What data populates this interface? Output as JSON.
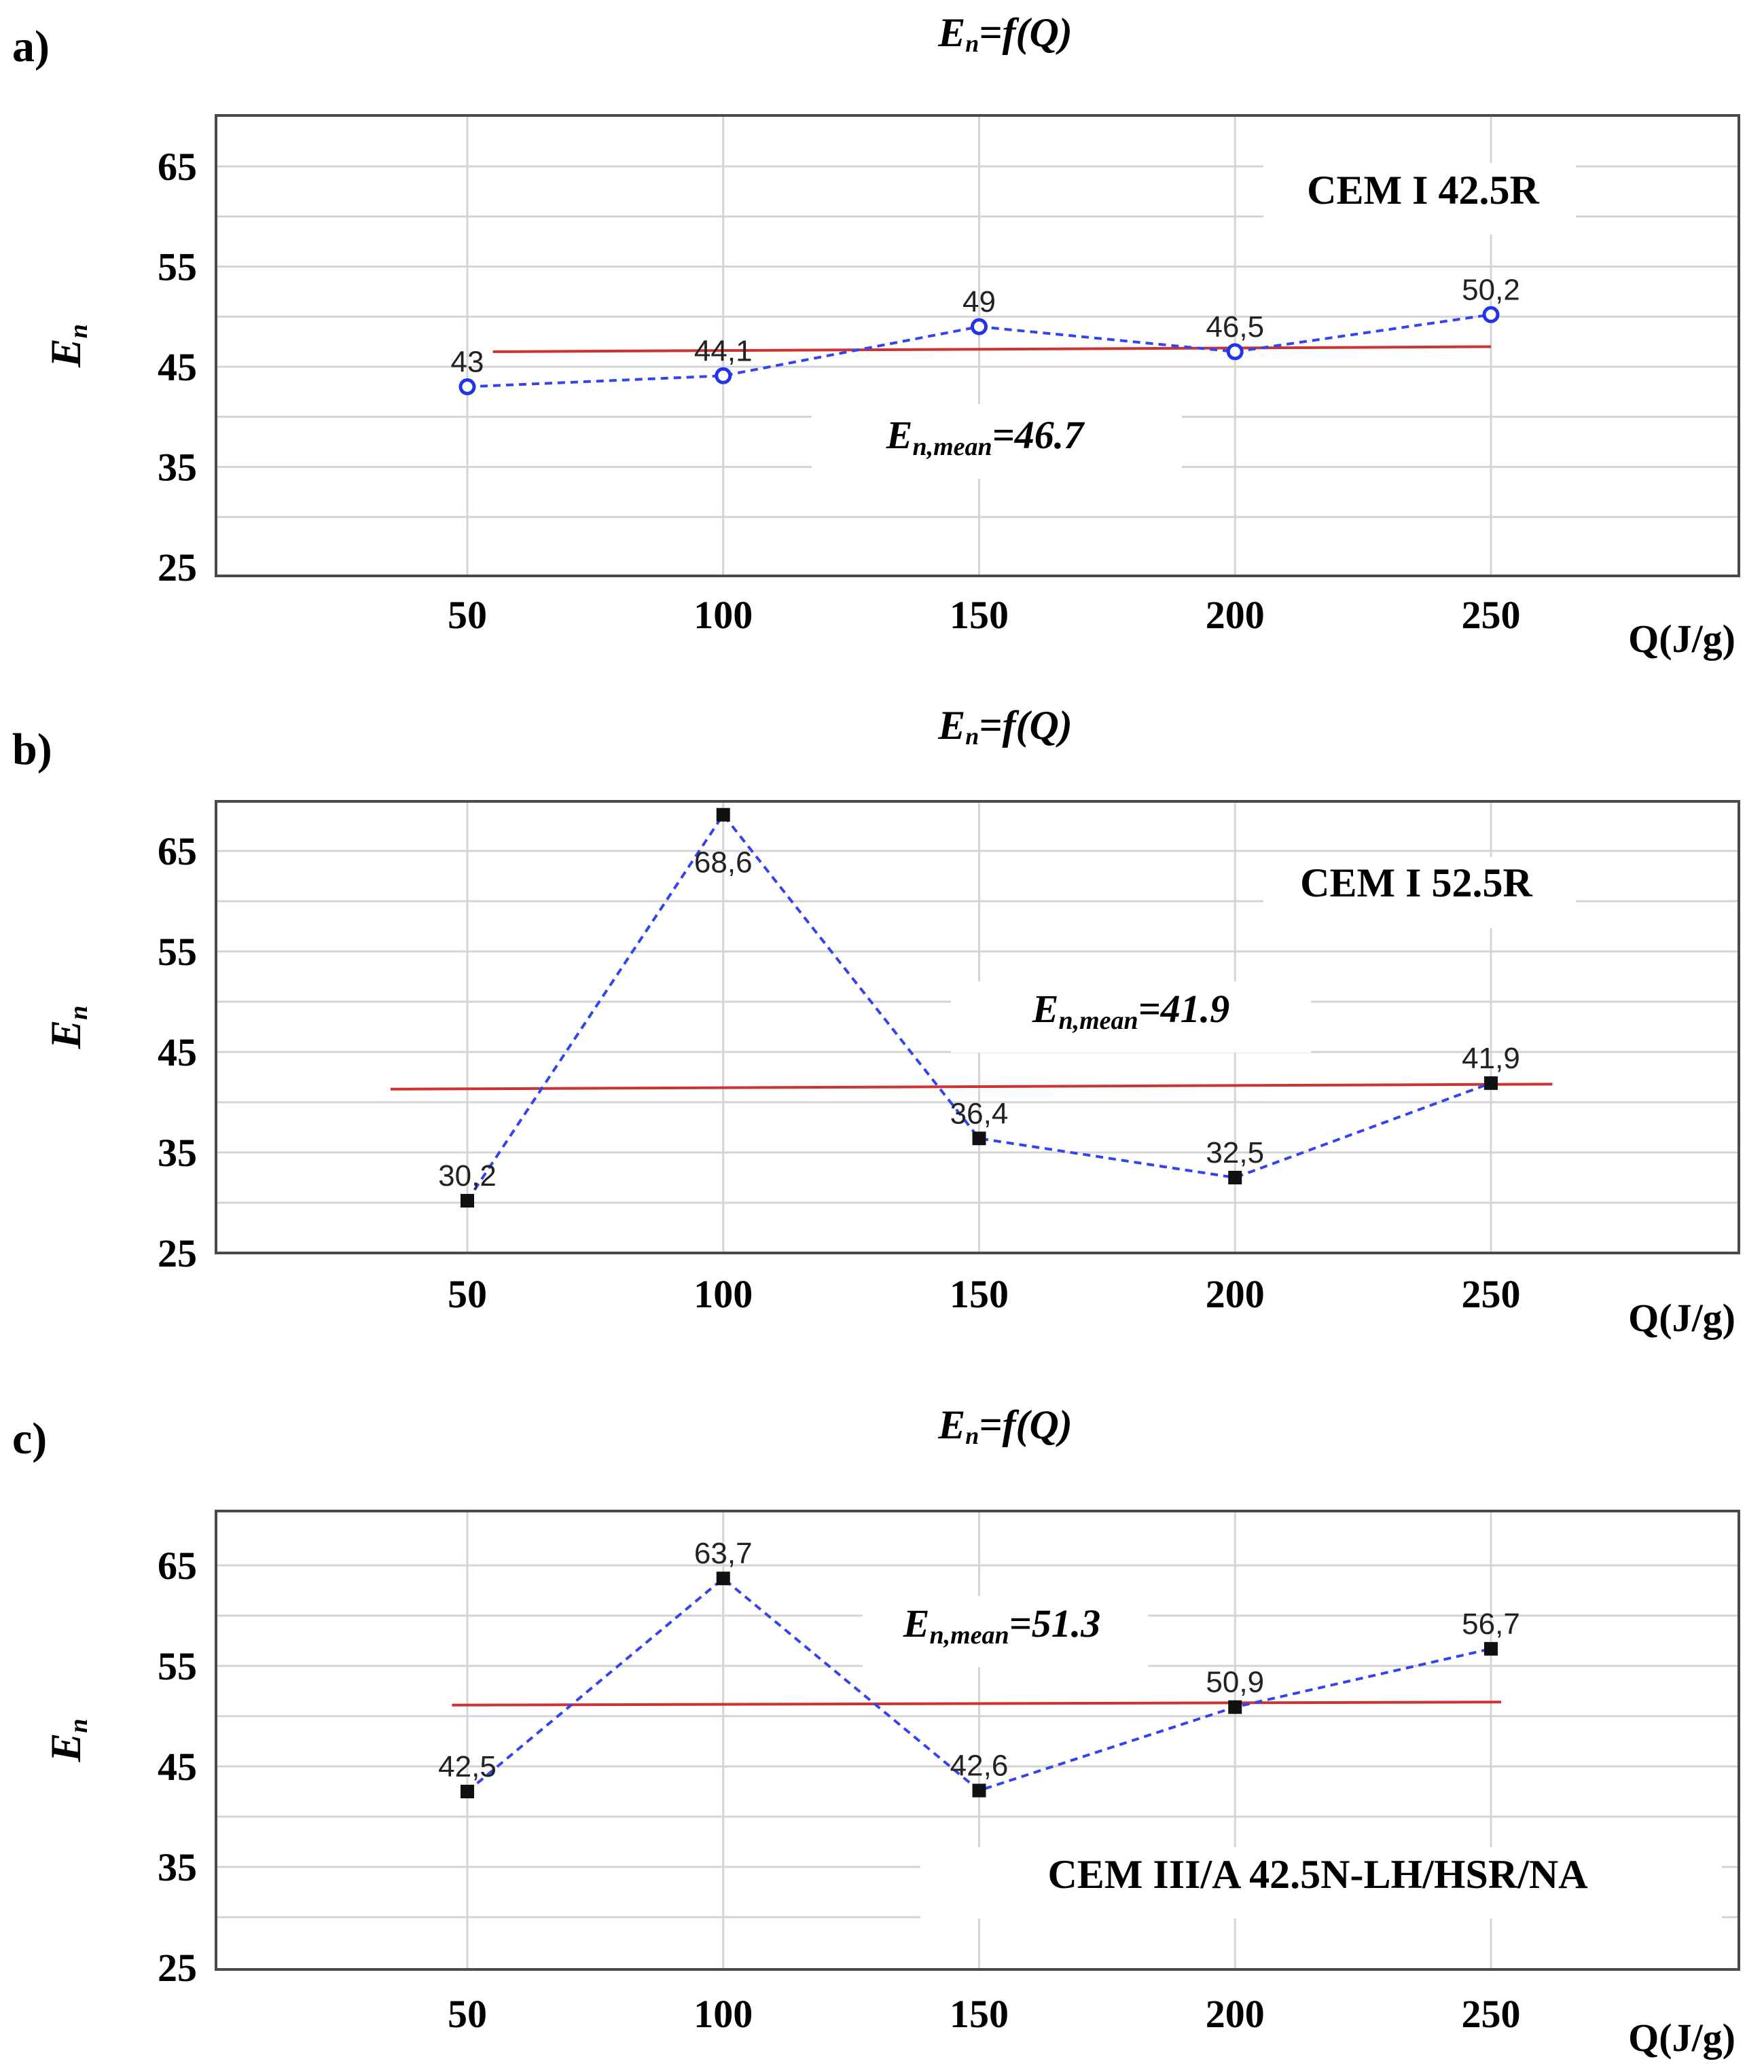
{
  "figure": {
    "axis_title_y": "E",
    "axis_title_y_sub": "n"
  },
  "chart_data": [
    {
      "panel": "a)",
      "type": "line",
      "title": "E",
      "title_sub": "n",
      "title_rest": "=f(Q)",
      "cement": "CEM I 42.5R",
      "x": [
        50,
        100,
        150,
        200,
        250
      ],
      "xlabel": "Q(J/g)",
      "ylabel": "E",
      "ylabel_sub": "n",
      "ylim": [
        25,
        69
      ],
      "yticks": [
        25,
        35,
        45,
        55,
        65
      ],
      "grid": true,
      "series": [
        {
          "name": "E_n",
          "marker": "circle",
          "values": [
            43,
            44.1,
            49,
            46.5,
            50.2
          ],
          "labels": [
            "43",
            "44,1",
            "49",
            "46,5",
            "50,2"
          ]
        }
      ],
      "mean": {
        "label_main": "E",
        "label_sub": "n,mean",
        "label_rest": "=46.7",
        "value": 46.7,
        "line_start": [
          55,
          46.5
        ],
        "line_end": [
          250,
          47
        ]
      },
      "colors": {
        "series": "#3344ee",
        "mean": "#cc3333"
      }
    },
    {
      "panel": "b)",
      "type": "line",
      "title": "E",
      "title_sub": "n",
      "title_rest": "=f(Q)",
      "cement": "CEM I 52.5R",
      "x": [
        50,
        100,
        150,
        200,
        250
      ],
      "xlabel": "Q(J/g)",
      "ylabel": "E",
      "ylabel_sub": "n",
      "ylim": [
        25,
        69
      ],
      "yticks": [
        25,
        35,
        45,
        55,
        65
      ],
      "grid": true,
      "series": [
        {
          "name": "E_n",
          "marker": "square",
          "values": [
            30.2,
            68.6,
            36.4,
            32.5,
            41.9
          ],
          "labels": [
            "30,2",
            "68,6",
            "36,4",
            "32,5",
            "41,9"
          ]
        }
      ],
      "mean": {
        "label_main": "E",
        "label_sub": "n,mean",
        "label_rest": "=41.9",
        "value": 41.9,
        "line_start": [
          35,
          41.3
        ],
        "line_end": [
          262,
          41.8
        ]
      },
      "colors": {
        "series": "#3344ee",
        "mean": "#cc3333"
      }
    },
    {
      "panel": "c)",
      "type": "line",
      "title": "E",
      "title_sub": "n",
      "title_rest": "=f(Q)",
      "cement": "CEM III/A 42.5N-LH/HSR/NA",
      "x": [
        50,
        100,
        150,
        200,
        250
      ],
      "xlabel": "Q(J/g)",
      "ylabel": "E",
      "ylabel_sub": "n",
      "ylim": [
        25,
        69
      ],
      "yticks": [
        25,
        35,
        45,
        55,
        65
      ],
      "grid": true,
      "series": [
        {
          "name": "E_n",
          "marker": "square",
          "values": [
            42.5,
            63.7,
            42.6,
            50.9,
            56.7
          ],
          "labels": [
            "42,5",
            "63,7",
            "42,6",
            "50,9",
            "56,7"
          ]
        }
      ],
      "mean": {
        "label_main": "E",
        "label_sub": "n,mean",
        "label_rest": "=51.3",
        "value": 51.3,
        "line_start": [
          47,
          51.1
        ],
        "line_end": [
          252,
          51.4
        ]
      },
      "colors": {
        "series": "#3344ee",
        "mean": "#cc3333"
      }
    }
  ]
}
